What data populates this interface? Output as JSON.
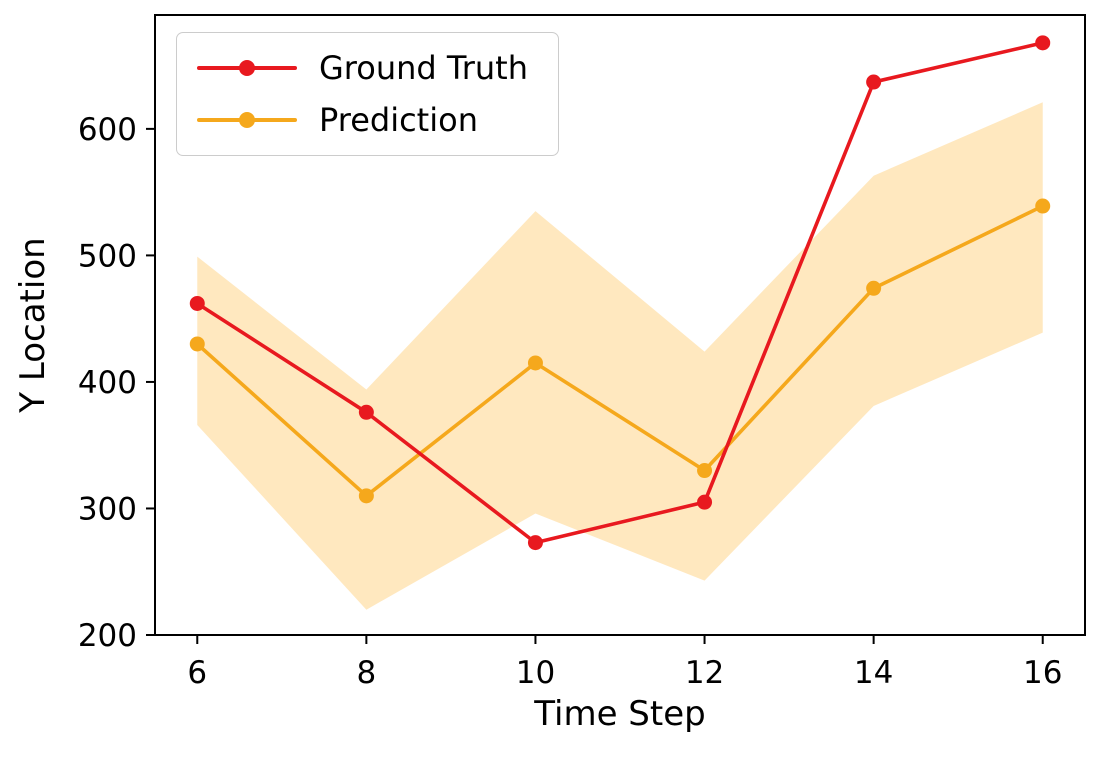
{
  "chart_data": {
    "type": "line",
    "title": "",
    "xlabel": "Time Step",
    "ylabel": "Y Location",
    "x": [
      6,
      8,
      10,
      12,
      14,
      16
    ],
    "series": [
      {
        "name": "Ground Truth",
        "color": "#e8191f",
        "marker": "circle",
        "values": [
          462,
          376,
          273,
          305,
          637,
          668
        ]
      },
      {
        "name": "Prediction",
        "color": "#f5a81c",
        "marker": "circle",
        "values": [
          430,
          310,
          415,
          330,
          474,
          539
        ]
      }
    ],
    "band": {
      "series": "Prediction",
      "color": "#ffa500",
      "opacity": 0.25,
      "lower": [
        366,
        220,
        296,
        243,
        381,
        439
      ],
      "upper": [
        499,
        394,
        535,
        424,
        563,
        621
      ]
    },
    "xlim": [
      5.5,
      16.5
    ],
    "ylim": [
      200,
      690
    ],
    "xticks": [
      6,
      8,
      10,
      12,
      14,
      16
    ],
    "yticks": [
      200,
      300,
      400,
      500,
      600
    ],
    "grid": false,
    "legend": {
      "position": "upper left"
    }
  }
}
